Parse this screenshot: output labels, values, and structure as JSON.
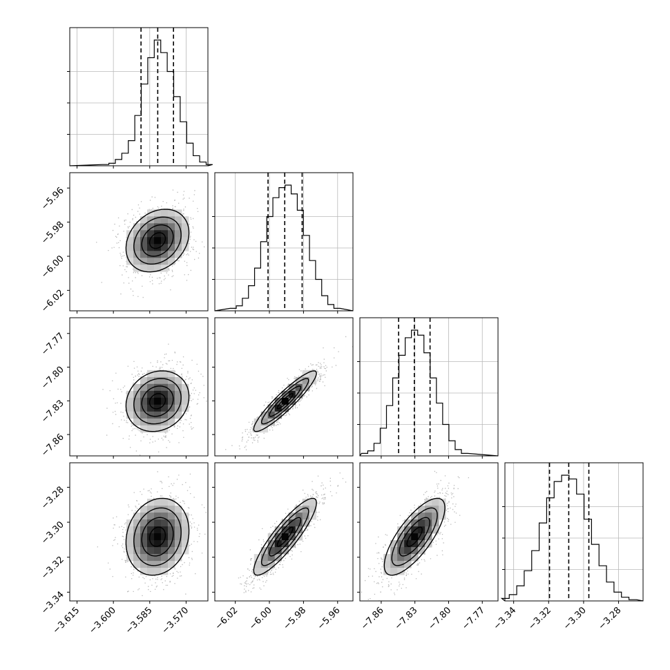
{
  "chart_data": {
    "type": "corner",
    "parameters": [
      {
        "range": [
          -3.618,
          -3.561
        ],
        "ticks": [
          -3.615,
          -3.6,
          -3.585,
          -3.57
        ],
        "tick_labels": [
          "−3.615",
          "−3.600",
          "−3.585",
          "−3.570"
        ],
        "quantiles": [
          -3.5886,
          -3.5817,
          -3.5752
        ],
        "mean": -3.5818,
        "sd": 0.0065,
        "hist": [
          0.01,
          0.02,
          0.05,
          0.1,
          0.2,
          0.4,
          0.65,
          0.86,
          1.0,
          0.9,
          0.75,
          0.55,
          0.35,
          0.18,
          0.08,
          0.03,
          0.01
        ]
      },
      {
        "range": [
          -6.032,
          -5.951
        ],
        "ticks": [
          -6.02,
          -6.0,
          -5.98,
          -5.96
        ],
        "tick_labels": [
          "−6.02",
          "−6.00",
          "−5.98",
          "−5.96"
        ],
        "quantiles": [
          -6.0008,
          -5.991,
          -5.9808
        ],
        "mean": -5.9908,
        "sd": 0.0092,
        "hist": [
          0.02,
          0.04,
          0.1,
          0.2,
          0.34,
          0.55,
          0.75,
          0.9,
          0.98,
          1.0,
          0.93,
          0.8,
          0.6,
          0.4,
          0.25,
          0.12,
          0.05,
          0.02
        ]
      },
      {
        "range": [
          -7.879,
          -7.756
        ],
        "ticks": [
          -7.86,
          -7.83,
          -7.8,
          -7.77
        ],
        "tick_labels": [
          "−7.86",
          "−7.83",
          "−7.80",
          "−7.77"
        ],
        "quantiles": [
          -7.8445,
          -7.8305,
          -7.8165
        ],
        "mean": -7.8303,
        "sd": 0.0135,
        "hist": [
          0.02,
          0.04,
          0.1,
          0.22,
          0.4,
          0.62,
          0.8,
          0.94,
          1.0,
          0.96,
          0.82,
          0.62,
          0.42,
          0.25,
          0.12,
          0.05,
          0.02
        ]
      },
      {
        "range": [
          -3.345,
          -3.266
        ],
        "ticks": [
          -3.34,
          -3.32,
          -3.3,
          -3.28
        ],
        "tick_labels": [
          "−3.34",
          "−3.32",
          "−3.30",
          "−3.28"
        ],
        "quantiles": [
          -3.3195,
          -3.3085,
          -3.297
        ],
        "mean": -3.3083,
        "sd": 0.011,
        "hist": [
          0.02,
          0.05,
          0.12,
          0.24,
          0.4,
          0.62,
          0.82,
          0.95,
          1.0,
          0.97,
          0.85,
          0.65,
          0.45,
          0.28,
          0.15,
          0.07,
          0.03,
          0.01
        ]
      }
    ],
    "correlations": [
      [
        1.0,
        0.25,
        0.15,
        0.15
      ],
      [
        0.25,
        1.0,
        0.92,
        0.88
      ],
      [
        0.15,
        0.92,
        1.0,
        0.75
      ],
      [
        0.15,
        0.88,
        0.75,
        1.0
      ]
    ],
    "contour_levels": [
      0.5,
      1.0,
      1.5,
      2.0
    ],
    "grid": true,
    "series": [],
    "title": "",
    "xlabel": "",
    "ylabel": ""
  }
}
